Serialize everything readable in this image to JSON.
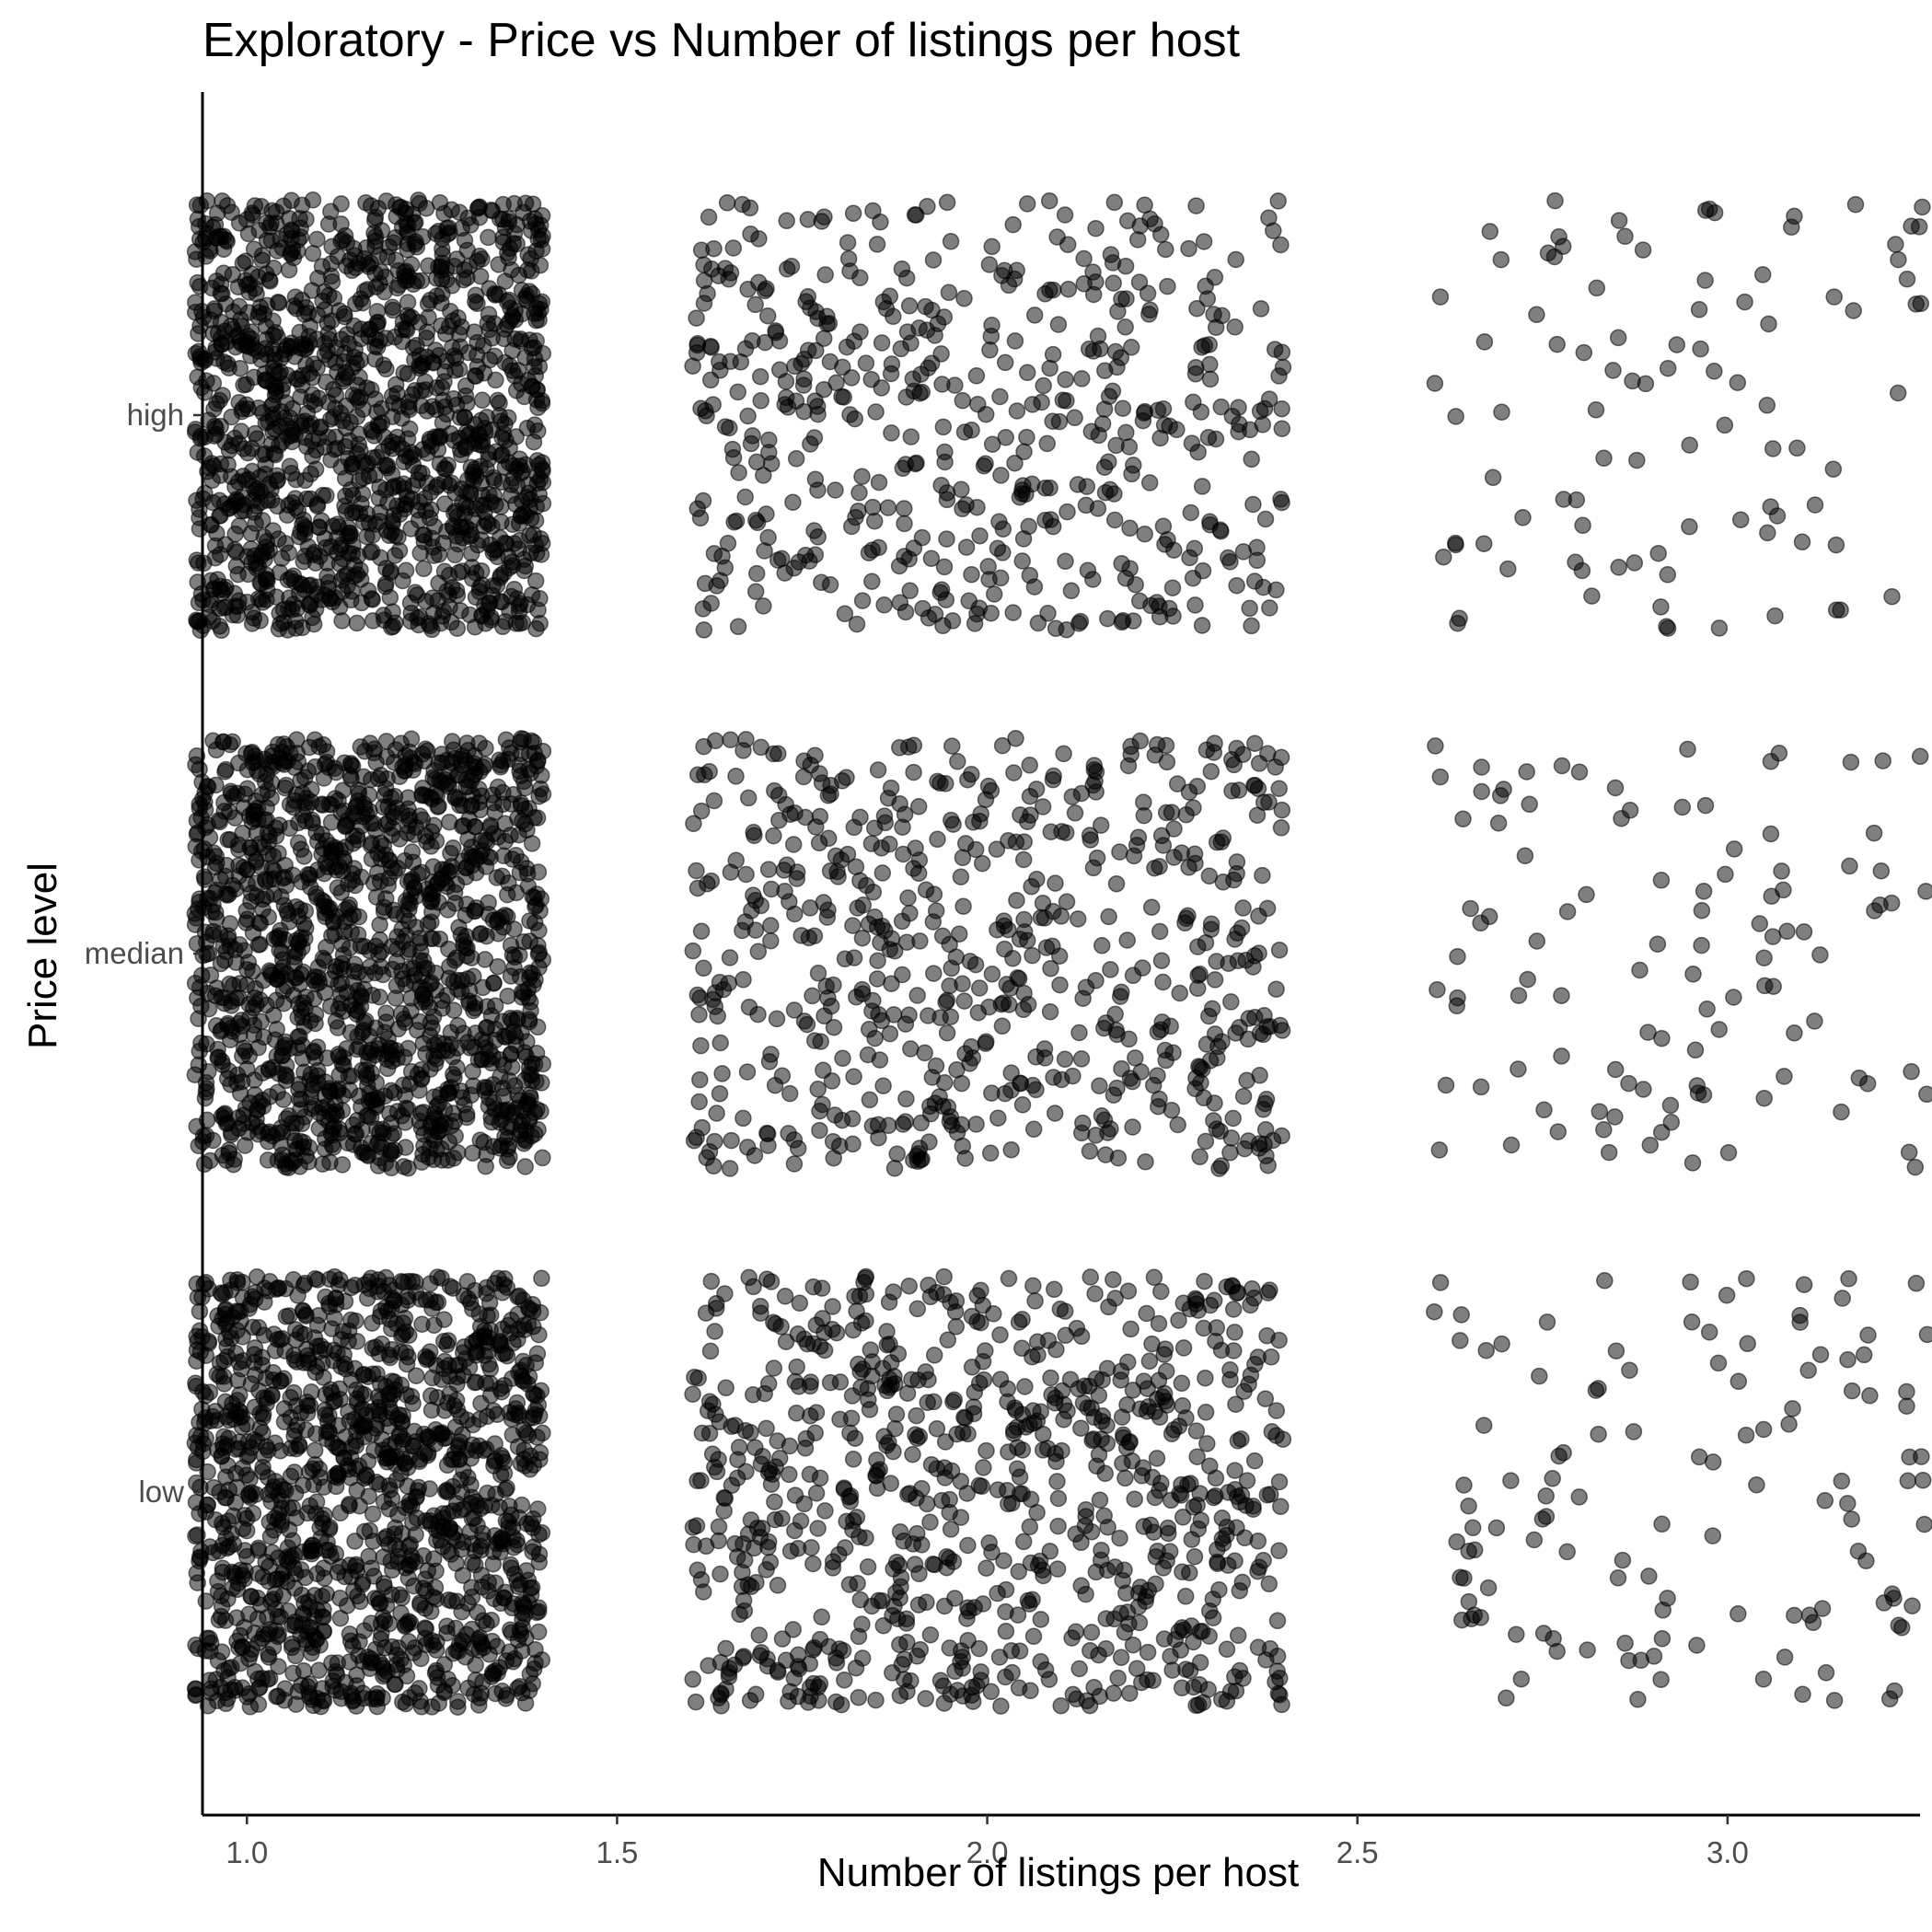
{
  "chart_data": {
    "type": "scatter",
    "title": "Exploratory - Price vs Number of listings per host",
    "xlabel": "Number of listings per host",
    "ylabel": "Price level",
    "xlim": [
      0.94,
      3.26
    ],
    "x_ticks": [
      1.0,
      1.5,
      2.0,
      2.5,
      3.0
    ],
    "x_tick_labels": [
      "1.0",
      "1.5",
      "2.0",
      "2.5",
      "3.0"
    ],
    "categories": [
      "low",
      "median",
      "high"
    ],
    "jitter": {
      "x": 0.4,
      "y": 0.4
    },
    "grid": false,
    "legend": "none",
    "point_color": "#000000",
    "point_alpha": 0.5,
    "groups": [
      {
        "x": 1,
        "category": "high",
        "count": 2400
      },
      {
        "x": 1,
        "category": "median",
        "count": 2400
      },
      {
        "x": 1,
        "category": "low",
        "count": 2400
      },
      {
        "x": 2,
        "category": "high",
        "count": 520
      },
      {
        "x": 2,
        "category": "median",
        "count": 620
      },
      {
        "x": 2,
        "category": "low",
        "count": 820
      },
      {
        "x": 3,
        "category": "high",
        "count": 110
      },
      {
        "x": 3,
        "category": "median",
        "count": 120
      },
      {
        "x": 3,
        "category": "low",
        "count": 150
      }
    ]
  }
}
